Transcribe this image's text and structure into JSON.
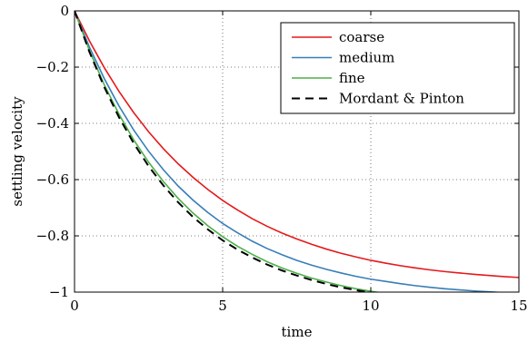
{
  "chart_data": {
    "type": "line",
    "title": "",
    "xlabel": "time",
    "ylabel": "settling velocity",
    "xlim": [
      0,
      15
    ],
    "ylim": [
      -1,
      0
    ],
    "xticks": [
      0,
      5,
      10,
      15
    ],
    "yticks": [
      0,
      -0.2,
      -0.4,
      -0.6,
      -0.8,
      -1
    ],
    "xtick_labels": [
      "0",
      "5",
      "10",
      "15"
    ],
    "ytick_labels": [
      "0",
      "−0.2",
      "−0.4",
      "−0.6",
      "−0.8",
      "−1"
    ],
    "grid": true,
    "grid_style": "dotted",
    "legend_position": "top-right",
    "series": [
      {
        "name": "coarse",
        "color": "#e41a1c",
        "dash": "solid",
        "x": [
          0,
          0.5,
          1,
          1.5,
          2,
          2.5,
          3,
          3.5,
          4,
          4.5,
          5,
          5.5,
          6,
          6.5,
          7,
          7.5,
          8,
          8.5,
          9,
          9.5,
          10,
          10.5,
          11,
          11.5,
          12,
          12.5,
          13,
          13.5,
          14,
          14.5,
          15
        ],
        "y": [
          0,
          -0.106,
          -0.201,
          -0.286,
          -0.362,
          -0.43,
          -0.49,
          -0.544,
          -0.592,
          -0.635,
          -0.674,
          -0.708,
          -0.739,
          -0.766,
          -0.79,
          -0.811,
          -0.83,
          -0.847,
          -0.862,
          -0.875,
          -0.887,
          -0.897,
          -0.906,
          -0.914,
          -0.921,
          -0.927,
          -0.932,
          -0.937,
          -0.941,
          -0.945,
          -0.948
        ]
      },
      {
        "name": "medium",
        "color": "#377eb8",
        "dash": "solid",
        "x": [
          0,
          0.5,
          1,
          1.5,
          2,
          2.5,
          3,
          3.5,
          4,
          4.5,
          5,
          5.5,
          6,
          6.5,
          7,
          7.5,
          8,
          8.5,
          9,
          9.5,
          10,
          10.5,
          11,
          11.5,
          12,
          12.5,
          13,
          13.5,
          14,
          14.5,
          15
        ],
        "y": [
          0,
          -0.128,
          -0.24,
          -0.338,
          -0.424,
          -0.499,
          -0.565,
          -0.623,
          -0.673,
          -0.717,
          -0.756,
          -0.789,
          -0.819,
          -0.845,
          -0.867,
          -0.887,
          -0.904,
          -0.919,
          -0.932,
          -0.944,
          -0.954,
          -0.962,
          -0.97,
          -0.977,
          -0.983,
          -0.988,
          -0.992,
          -0.996,
          -0.999,
          -1.002,
          -1.005
        ]
      },
      {
        "name": "fine",
        "color": "#4daf4a",
        "dash": "solid",
        "x": [
          0,
          0.5,
          1,
          1.5,
          2,
          2.5,
          3,
          3.5,
          4,
          4.5,
          5,
          5.5,
          6,
          6.5,
          7,
          7.5,
          8,
          8.5,
          9,
          9.5,
          10,
          10.5,
          11,
          11.5,
          12,
          12.5,
          13,
          13.5,
          14,
          14.5,
          15
        ],
        "y": [
          0,
          -0.14,
          -0.262,
          -0.367,
          -0.459,
          -0.538,
          -0.607,
          -0.667,
          -0.719,
          -0.764,
          -0.803,
          -0.837,
          -0.866,
          -0.892,
          -0.914,
          -0.933,
          -0.95,
          -0.964,
          -0.977,
          -0.988,
          -0.997,
          -1.005,
          -1.012,
          -1.018,
          -1.024,
          -1.028,
          -1.032,
          -1.036,
          -1.039,
          -1.042,
          -1.044
        ]
      },
      {
        "name": "Mordant & Pinton",
        "color": "#000000",
        "dash": "dashed",
        "x": [
          0,
          0.5,
          1,
          1.5,
          2,
          2.5,
          3,
          3.5,
          4,
          4.5,
          5,
          5.5,
          6,
          6.5,
          7,
          7.5,
          8,
          8.5,
          9,
          9.5,
          10,
          10.5,
          11,
          11.5,
          12,
          12.5,
          13,
          13.5,
          14,
          14.5,
          15
        ],
        "y": [
          0,
          -0.145,
          -0.27,
          -0.378,
          -0.471,
          -0.552,
          -0.621,
          -0.681,
          -0.733,
          -0.777,
          -0.816,
          -0.849,
          -0.877,
          -0.902,
          -0.923,
          -0.941,
          -0.957,
          -0.971,
          -0.983,
          -0.993,
          -1.002,
          -1.009,
          -1.016,
          -1.022,
          -1.027,
          -1.031,
          -1.035,
          -1.038,
          -1.041,
          -1.043,
          -1.045
        ]
      }
    ]
  }
}
